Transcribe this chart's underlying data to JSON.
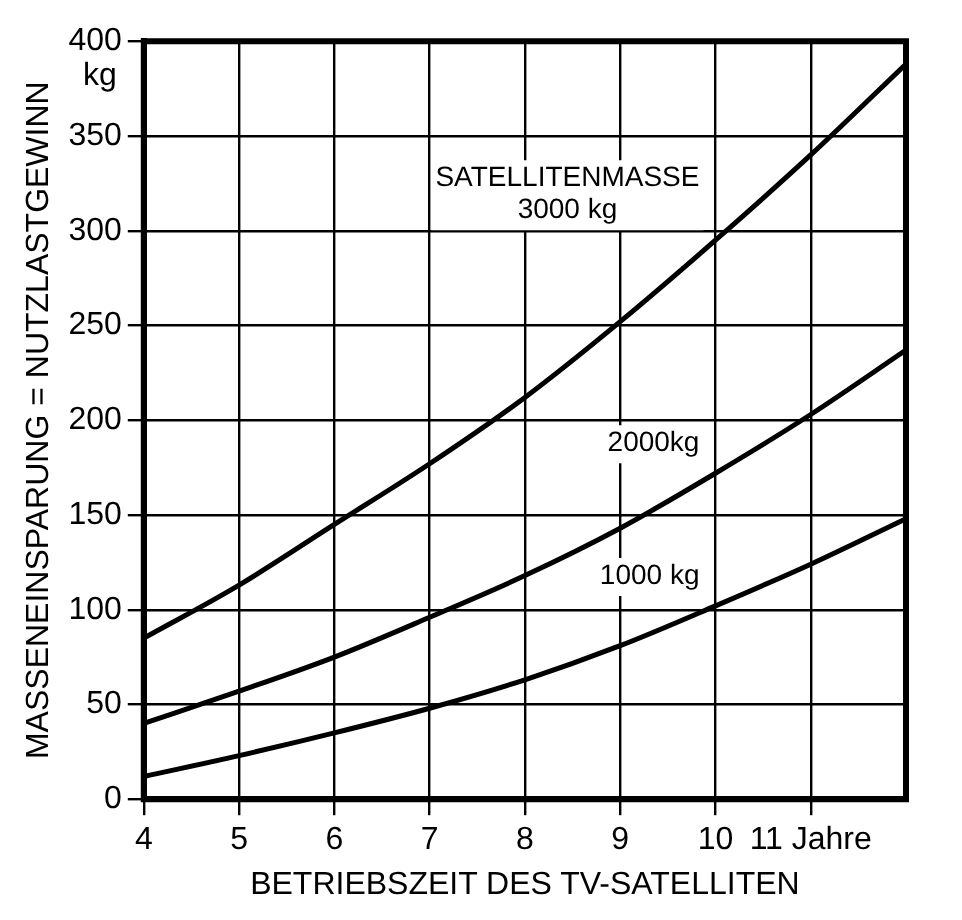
{
  "chart_data": {
    "type": "line",
    "xlabel": "BETRIEBSZEIT DES TV-SATELLITEN",
    "ylabel": "MASSENEINSPARUNG = NUTZLASTGEWINN",
    "x": [
      4,
      5,
      6,
      7,
      8,
      9,
      10,
      11,
      12
    ],
    "series": [
      {
        "name": "1000 kg",
        "color": "#000000",
        "values": [
          12,
          23,
          35,
          48,
          63,
          81,
          102,
          124,
          148
        ]
      },
      {
        "name": "2000kg",
        "color": "#000000",
        "values": [
          40,
          57,
          75,
          96,
          118,
          143,
          172,
          203,
          237
        ]
      },
      {
        "name": "SATELLITENMASSE 3000 kg",
        "color": "#000000",
        "values": [
          85,
          113,
          145,
          177,
          212,
          252,
          295,
          340,
          388
        ]
      }
    ],
    "xlim": [
      4,
      12
    ],
    "xticks": [
      4,
      5,
      6,
      7,
      8,
      9,
      10,
      {
        "value": 11,
        "label": "11 Jahre"
      }
    ],
    "ylim": [
      0,
      400
    ],
    "yticks": [
      0,
      50,
      100,
      150,
      200,
      250,
      300,
      350,
      400
    ],
    "annotations": [
      "kg"
    ],
    "grid": true,
    "legend": false,
    "marker": "none",
    "line_style": "solid"
  }
}
